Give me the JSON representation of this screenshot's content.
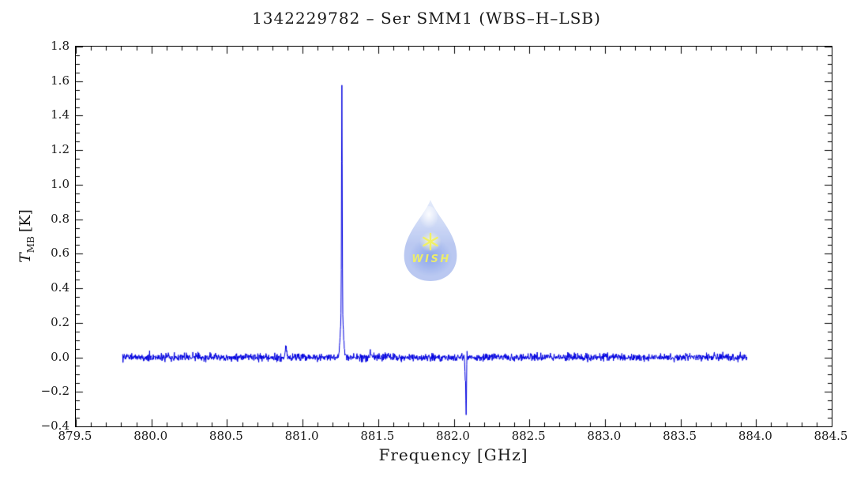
{
  "page": {
    "background": "#ffffff"
  },
  "chart_data": {
    "type": "line",
    "title": "1342229782 – Ser SMM1 (WBS–H–LSB)",
    "xlabel": "Frequency [GHz]",
    "ylabel": "T_MB [K]",
    "y_label_symbol": "T",
    "y_label_sub": "MB",
    "y_label_unit": "[K]",
    "xlim": [
      879.5,
      884.5
    ],
    "ylim": [
      -0.4,
      1.8
    ],
    "x_tick_values": [
      879.5,
      880.0,
      880.5,
      881.0,
      881.5,
      882.0,
      882.5,
      883.0,
      883.5,
      884.0,
      884.5
    ],
    "x_tick_labels": [
      "879.5",
      "880.0",
      "880.5",
      "881.0",
      "881.5",
      "882.0",
      "882.5",
      "883.0",
      "883.5",
      "884.0",
      "884.5"
    ],
    "x_minor_step": 0.1,
    "y_tick_values": [
      -0.4,
      -0.2,
      0.0,
      0.2,
      0.4,
      0.6,
      0.8,
      1.0,
      1.2,
      1.4,
      1.6,
      1.8
    ],
    "y_tick_labels": [
      "−0.4",
      "−0.2",
      "0.0",
      "0.2",
      "0.4",
      "0.6",
      "0.8",
      "1.0",
      "1.2",
      "1.4",
      "1.6",
      "1.8"
    ],
    "y_minor_step": 0.05,
    "grid": false,
    "legend": null,
    "line_color": "#0000e0",
    "frame_color": "#000000",
    "background": "#ffffff",
    "data_x_range": [
      879.81,
      883.94
    ],
    "channel_step_ghz": 0.002,
    "baseline_k": 0.0,
    "noise_sigma_k": 0.011,
    "noise_seed": 1342229782,
    "features": [
      {
        "name": "emission-line-main-narrow",
        "center_ghz": 881.26,
        "peak_k": 1.3,
        "sigma_ghz": 0.0022
      },
      {
        "name": "emission-line-main-base",
        "center_ghz": 881.26,
        "peak_k": 0.28,
        "sigma_ghz": 0.009
      },
      {
        "name": "emission-bump",
        "center_ghz": 880.89,
        "peak_k": 0.07,
        "sigma_ghz": 0.004
      },
      {
        "name": "emission-bump-weak",
        "center_ghz": 881.45,
        "peak_k": 0.04,
        "sigma_ghz": 0.004
      },
      {
        "name": "absorption-spike-shallow",
        "center_ghz": 882.076,
        "peak_k": -0.12,
        "sigma_ghz": 0.0025
      },
      {
        "name": "absorption-spike-deep",
        "center_ghz": 882.082,
        "peak_k": -0.33,
        "sigma_ghz": 0.0022
      },
      {
        "name": "absorption-overshoot",
        "center_ghz": 882.088,
        "peak_k": 0.06,
        "sigma_ghz": 0.0015
      }
    ],
    "peak_readings": {
      "main_line_center_ghz": 881.26,
      "main_line_peak_k": 1.57,
      "main_line_shoulder_k": 1.11,
      "bump_center_ghz": 880.89,
      "bump_peak_k": 0.07,
      "absorption_center_ghz": 882.08,
      "absorption_min_k": -0.33
    }
  },
  "watermark": {
    "text": "WISH",
    "icon": "water-drop-with-star",
    "drop_color_light": "#e2eafb",
    "drop_color_mid": "#b3c3f0",
    "drop_color_glow": "#7d9ae8",
    "star_color": "#f0ef55",
    "text_color": "#e9ea5c"
  }
}
